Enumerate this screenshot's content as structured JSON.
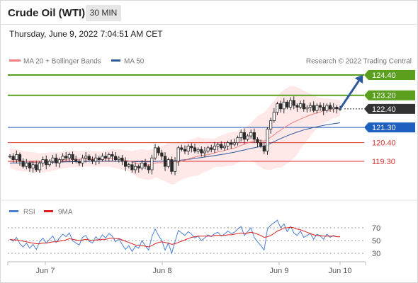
{
  "header": {
    "title": "Crude Oil (WTI)",
    "timeframe": "30 MIN",
    "timestamp": "Thursday, June 9, 2022 7:04:51 AM CET"
  },
  "legend": {
    "ma20": "MA 20 + Bollinger Bands",
    "ma50": "MA 50",
    "copyright": "Research © 2022 Trading Central",
    "ma20_color": "#f08080",
    "ma50_color": "#2e5a9c"
  },
  "rsi_legend": {
    "rsi": "RSI",
    "ma9": "9MA",
    "rsi_color": "#4a7fd6",
    "ma9_color": "#e02020"
  },
  "levels": [
    {
      "value": 124.4,
      "label": "124.40",
      "color": "#5aa01e",
      "style": "resistance"
    },
    {
      "value": 123.2,
      "label": "123.20",
      "color": "#5aa01e",
      "style": "resistance"
    },
    {
      "value": 122.4,
      "label": "122.40",
      "color": "#333333",
      "style": "last"
    },
    {
      "value": 121.3,
      "label": "121.30",
      "color": "#1f5fbf",
      "style": "pivot"
    },
    {
      "value": 120.4,
      "label": "120.40",
      "color": "#e03030",
      "style": "support"
    },
    {
      "value": 119.3,
      "label": "119.30",
      "color": "#e03030",
      "style": "support"
    }
  ],
  "chart_data": {
    "type": "candlestick",
    "instrument": "Crude Oil (WTI)",
    "timeframe": "30 MIN",
    "x_ticks": [
      "Jun 7",
      "Jun 8",
      "Jun 9",
      "Jun 10"
    ],
    "y_range": [
      118.2,
      125.0
    ],
    "price_series": [
      119.6,
      119.4,
      119.7,
      119.3,
      119.0,
      119.2,
      118.9,
      119.1,
      118.8,
      119.2,
      119.4,
      119.1,
      119.3,
      119.5,
      119.2,
      119.4,
      119.6,
      119.5,
      119.7,
      119.4,
      119.3,
      119.2,
      119.5,
      119.6,
      119.4,
      119.3,
      119.5,
      119.4,
      119.6,
      119.5,
      119.7,
      119.6,
      119.4,
      119.5,
      119.3,
      119.0,
      119.1,
      118.8,
      119.0,
      118.9,
      119.2,
      119.0,
      118.8,
      119.5,
      120.1,
      119.8,
      119.6,
      119.0,
      119.4,
      118.7,
      119.3,
      120.1,
      120.0,
      119.9,
      120.2,
      120.1,
      119.9,
      120.0,
      119.8,
      119.9,
      120.1,
      120.0,
      120.2,
      120.3,
      120.1,
      120.2,
      120.4,
      120.3,
      120.4,
      120.7,
      121.0,
      120.6,
      120.8,
      121.0,
      120.6,
      120.4,
      120.2,
      119.9,
      121.2,
      121.7,
      122.2,
      122.7,
      122.4,
      122.8,
      122.5,
      122.9,
      122.6,
      122.5,
      122.7,
      122.4,
      122.5,
      122.6,
      122.3,
      122.6,
      122.5,
      122.3,
      122.6,
      122.4,
      122.5,
      122.4,
      122.4
    ],
    "ma20_series": [
      119.5,
      119.45,
      119.4,
      119.35,
      119.3,
      119.3,
      119.28,
      119.25,
      119.22,
      119.2,
      119.22,
      119.24,
      119.26,
      119.3,
      119.3,
      119.34,
      119.38,
      119.4,
      119.44,
      119.44,
      119.44,
      119.42,
      119.44,
      119.46,
      119.46,
      119.44,
      119.44,
      119.43,
      119.44,
      119.45,
      119.48,
      119.48,
      119.46,
      119.44,
      119.4,
      119.36,
      119.32,
      119.26,
      119.2,
      119.16,
      119.14,
      119.1,
      119.08,
      119.12,
      119.2,
      119.22,
      119.22,
      119.2,
      119.2,
      119.15,
      119.18,
      119.25,
      119.3,
      119.36,
      119.44,
      119.5,
      119.55,
      119.6,
      119.62,
      119.66,
      119.7,
      119.74,
      119.8,
      119.86,
      119.9,
      119.94,
      120.0,
      120.04,
      120.08,
      120.16,
      120.25,
      120.3,
      120.38,
      120.46,
      120.5,
      120.52,
      120.52,
      120.5,
      120.6,
      120.72,
      120.86,
      121.02,
      121.14,
      121.28,
      121.4,
      121.52,
      121.62,
      121.7,
      121.8,
      121.88,
      121.96,
      122.04,
      122.1,
      122.16,
      122.22,
      122.28,
      122.32,
      122.36,
      122.4,
      122.42,
      122.44
    ],
    "ma50_series": [
      119.2,
      119.2,
      119.2,
      119.2,
      119.21,
      119.21,
      119.22,
      119.22,
      119.22,
      119.23,
      119.23,
      119.24,
      119.24,
      119.25,
      119.25,
      119.26,
      119.26,
      119.27,
      119.27,
      119.28,
      119.28,
      119.28,
      119.29,
      119.29,
      119.3,
      119.3,
      119.3,
      119.3,
      119.31,
      119.31,
      119.31,
      119.31,
      119.31,
      119.31,
      119.3,
      119.3,
      119.3,
      119.29,
      119.28,
      119.28,
      119.28,
      119.27,
      119.27,
      119.28,
      119.29,
      119.3,
      119.31,
      119.31,
      119.32,
      119.32,
      119.33,
      119.35,
      119.37,
      119.39,
      119.42,
      119.44,
      119.47,
      119.5,
      119.52,
      119.55,
      119.58,
      119.61,
      119.64,
      119.67,
      119.7,
      119.73,
      119.77,
      119.8,
      119.84,
      119.88,
      119.93,
      119.97,
      120.02,
      120.07,
      120.1,
      120.14,
      120.17,
      120.2,
      120.27,
      120.36,
      120.46,
      120.56,
      120.64,
      120.73,
      120.81,
      120.89,
      120.96,
      121.03,
      121.09,
      121.15,
      121.2,
      121.25,
      121.3,
      121.34,
      121.38,
      121.42,
      121.46,
      121.49,
      121.52,
      121.55,
      121.58
    ],
    "projection": {
      "from": 122.4,
      "to": 124.4
    },
    "rsi_ticks": [
      70,
      50,
      30
    ],
    "rsi_series": [
      52,
      49,
      55,
      45,
      40,
      46,
      38,
      44,
      36,
      48,
      54,
      46,
      52,
      57,
      47,
      54,
      60,
      56,
      62,
      50,
      46,
      43,
      55,
      58,
      49,
      46,
      56,
      51,
      59,
      54,
      61,
      57,
      48,
      53,
      44,
      36,
      42,
      33,
      41,
      38,
      50,
      42,
      35,
      56,
      68,
      58,
      50,
      35,
      46,
      30,
      48,
      66,
      62,
      58,
      64,
      60,
      54,
      57,
      50,
      54,
      59,
      56,
      61,
      63,
      57,
      60,
      65,
      61,
      63,
      68,
      72,
      58,
      64,
      70,
      55,
      48,
      42,
      35,
      68,
      74,
      78,
      82,
      70,
      76,
      64,
      72,
      62,
      58,
      65,
      55,
      58,
      61,
      52,
      60,
      57,
      52,
      60,
      55,
      58,
      56,
      56
    ],
    "rsi_ma_series": [
      52,
      51,
      51,
      50,
      49,
      48,
      47,
      46,
      45,
      45,
      46,
      46,
      47,
      48,
      48,
      49,
      50,
      51,
      53,
      52,
      51,
      50,
      51,
      52,
      51,
      50,
      51,
      51,
      52,
      52,
      53,
      54,
      53,
      53,
      51,
      49,
      47,
      45,
      43,
      42,
      42,
      41,
      40,
      42,
      45,
      47,
      48,
      47,
      46,
      44,
      45,
      47,
      49,
      51,
      53,
      55,
      56,
      57,
      57,
      57,
      57,
      57,
      58,
      58,
      58,
      58,
      59,
      59,
      60,
      61,
      62,
      61,
      62,
      63,
      62,
      60,
      58,
      55,
      56,
      58,
      61,
      65,
      67,
      70,
      70,
      71,
      70,
      68,
      67,
      65,
      63,
      61,
      59,
      58,
      58,
      57,
      57,
      57,
      57,
      56,
      56
    ]
  }
}
